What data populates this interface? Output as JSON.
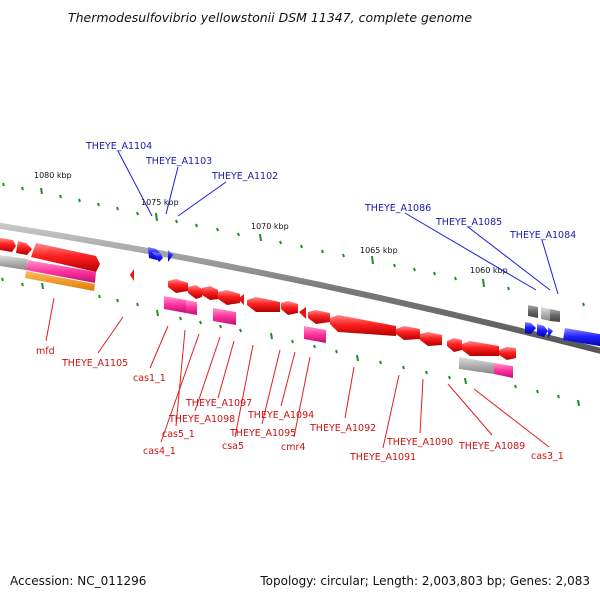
{
  "title": "Thermodesulfovibrio yellowstonii DSM 11347, complete genome",
  "footer": {
    "accession": "Accession: NC_011296",
    "summary": "Topology: circular; Length: 2,003,803 bp; Genes: 2,083"
  },
  "kbp_labels": [
    "1080 kbp",
    "1075 kbp",
    "1070 kbp",
    "1065 kbp",
    "1060 kbp"
  ],
  "blue_labels": [
    "THEYE_A1104",
    "THEYE_A1103",
    "THEYE_A1102",
    "THEYE_A1086",
    "THEYE_A1085",
    "THEYE_A1084"
  ],
  "red_labels": [
    "mfd",
    "THEYE_A1105",
    "cas1_1",
    "cas5_1",
    "cas4_1",
    "THEYE_A1098",
    "THEYE_A1097",
    "csa5",
    "THEYE_A1095",
    "THEYE_A1094",
    "cmr4",
    "THEYE_A1092",
    "THEYE_A1091",
    "THEYE_A1090",
    "THEYE_A1089",
    "cas3_1"
  ],
  "colors": {
    "forward_gene": "#1a1af0",
    "reverse_gene": "#ee1111",
    "rna_gene": "#ee2299",
    "pseudo_gene": "#999999",
    "tick": "#1f8f1f",
    "backbone": "#7a7a7a",
    "blue_label": "#1a1aa8",
    "red_label": "#cc1111"
  }
}
